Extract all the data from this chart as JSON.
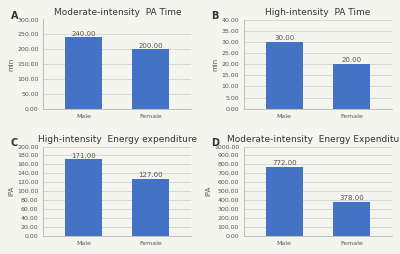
{
  "panels": [
    {
      "label": "A",
      "title": "Moderate-intensity  PA Time",
      "categories": [
        "Male",
        "Female"
      ],
      "values": [
        240.0,
        200.0
      ],
      "ylabel": "min",
      "ylim": [
        0,
        300
      ],
      "yticks": [
        0,
        50,
        100,
        150,
        200,
        250,
        300
      ],
      "ytick_labels": [
        "0.00",
        "50.00",
        "100.00",
        "150.00",
        "200.00",
        "250.00",
        "300.00"
      ]
    },
    {
      "label": "B",
      "title": "High-intensity  PA Time",
      "categories": [
        "Male",
        "Female"
      ],
      "values": [
        30.0,
        20.0
      ],
      "ylabel": "min",
      "ylim": [
        0,
        40
      ],
      "yticks": [
        0,
        5,
        10,
        15,
        20,
        25,
        30,
        35,
        40
      ],
      "ytick_labels": [
        "0.00",
        "5.00",
        "10.00",
        "15.00",
        "20.00",
        "25.00",
        "30.00",
        "35.00",
        "40.00"
      ]
    },
    {
      "label": "C",
      "title": "High-intensity  Energy expenditure",
      "categories": [
        "Male",
        "Female"
      ],
      "values": [
        171.0,
        127.0
      ],
      "ylabel": "IPA",
      "ylim": [
        0,
        200
      ],
      "yticks": [
        0,
        20,
        40,
        60,
        80,
        100,
        120,
        140,
        160,
        180,
        200
      ],
      "ytick_labels": [
        "0.00",
        "20.00",
        "40.00",
        "60.00",
        "80.00",
        "100.00",
        "120.00",
        "140.00",
        "160.00",
        "180.00",
        "200.00"
      ]
    },
    {
      "label": "D",
      "title": "Moderate-intensity  Energy Expenditure",
      "categories": [
        "Male",
        "Female"
      ],
      "values": [
        772.0,
        378.0
      ],
      "ylabel": "IPA",
      "ylim": [
        0,
        1000
      ],
      "yticks": [
        0,
        100,
        200,
        300,
        400,
        500,
        600,
        700,
        800,
        900,
        1000
      ],
      "ytick_labels": [
        "0.00",
        "100.00",
        "200.00",
        "300.00",
        "400.00",
        "500.00",
        "600.00",
        "700.00",
        "800.00",
        "900.00",
        "1000.00"
      ]
    }
  ],
  "bar_color": "#4472C4",
  "bar_width": 0.55,
  "background_color": "#f5f5f0",
  "axes_bg_color": "#f5f5f0",
  "label_fontsize": 7,
  "title_fontsize": 6.5,
  "tick_fontsize": 4.5,
  "annotation_fontsize": 5,
  "ylabel_fontsize": 5,
  "grid_color": "#cccccc",
  "spine_color": "#aaaaaa",
  "text_color": "#555555"
}
